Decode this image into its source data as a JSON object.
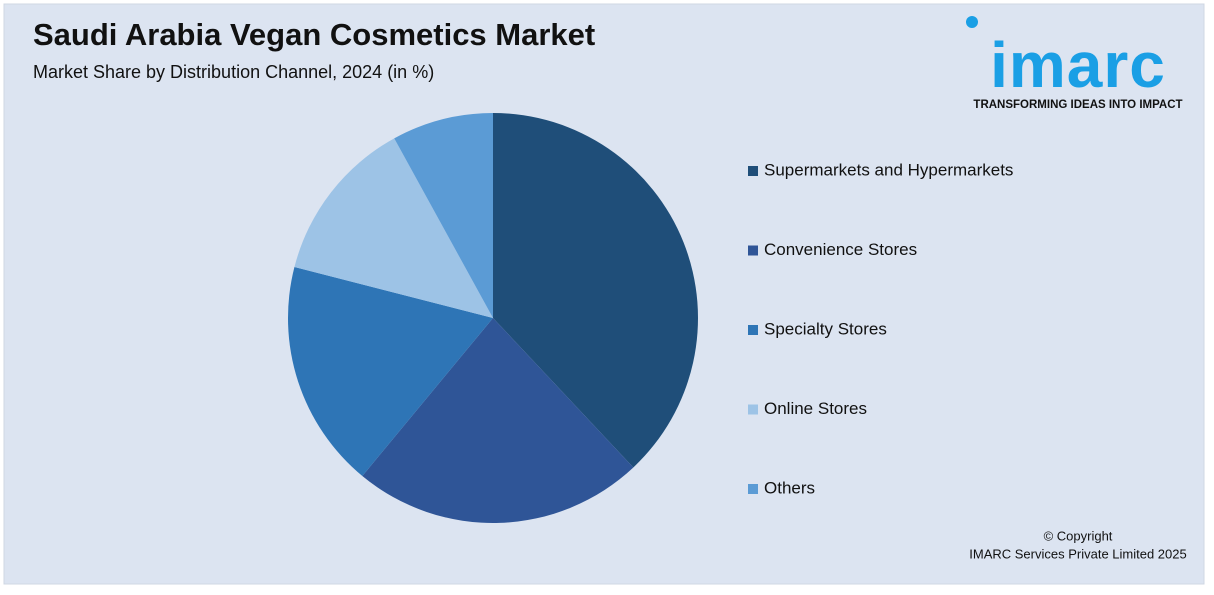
{
  "chart_data": {
    "type": "pie",
    "title": "Saudi Arabia Vegan Cosmetics Market",
    "subtitle": "Market Share by Distribution Channel, 2024 (in %)",
    "categories": [
      "Supermarkets and Hypermarkets",
      "Convenience Stores",
      "Specialty Stores",
      "Online Stores",
      "Others"
    ],
    "values": [
      38,
      23,
      18,
      13,
      8
    ],
    "colors": [
      "#1f4e79",
      "#2f5597",
      "#2e75b6",
      "#9dc3e6",
      "#5b9bd5"
    ],
    "legend": "right"
  },
  "logo": {
    "text": "imarc",
    "tagline": "TRANSFORMING IDEAS INTO IMPACT"
  },
  "copyright": [
    "© Copyright",
    "IMARC Services Private Limited 2025"
  ]
}
